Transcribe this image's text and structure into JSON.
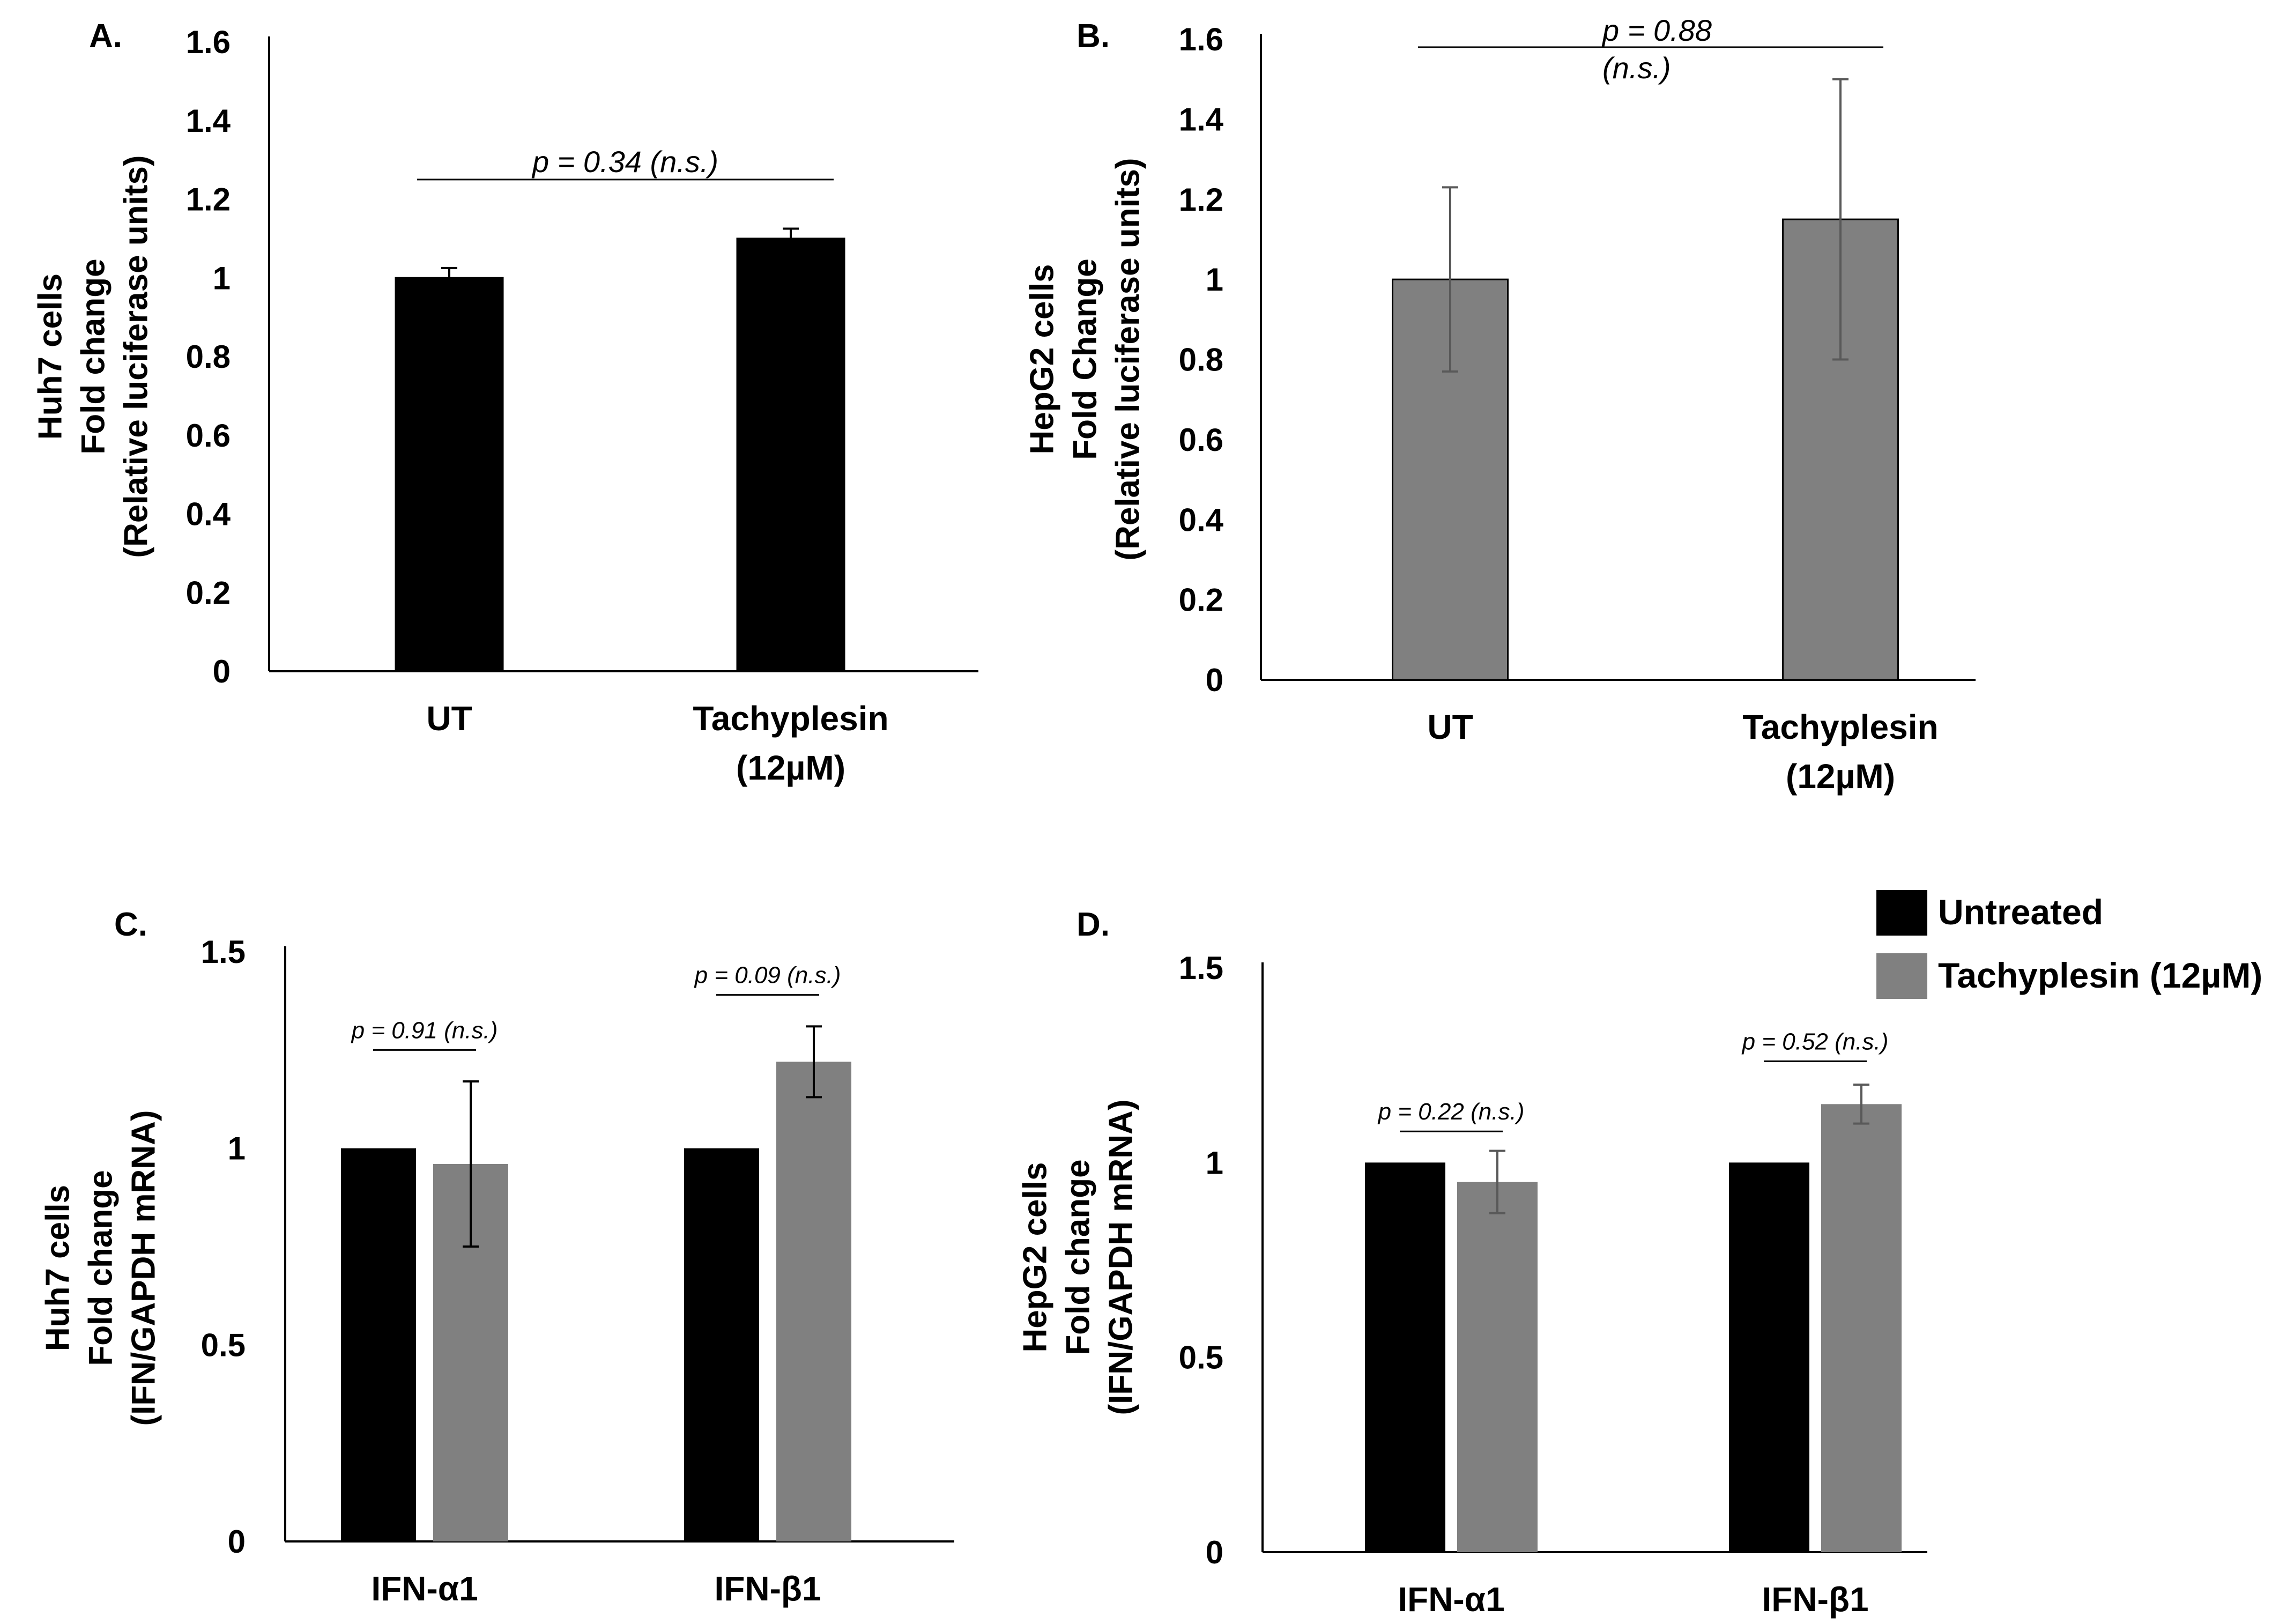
{
  "chart_data": [
    {
      "panel": "A.",
      "type": "bar",
      "categories": [
        "UT",
        "Tachyplesin\n(12µM)"
      ],
      "values": [
        1.0,
        1.1
      ],
      "errors": [
        0.025,
        0.025
      ],
      "colors": [
        "#000000",
        "#000000"
      ],
      "error_color": "#000000",
      "ylabel": [
        "Huh7 cells",
        "Fold change",
        "(Relative luciferase units)"
      ],
      "ylim": [
        0,
        1.6
      ],
      "yticks": [
        0,
        0.2,
        0.4,
        0.6,
        0.8,
        1,
        1.2,
        1.4,
        1.6
      ],
      "tick_labels": [
        "0",
        "0.2",
        "0.4",
        "0.6",
        "0.8",
        "1",
        "1.2",
        "1.4",
        "1.6"
      ],
      "annotations": [
        {
          "text": "p = 0.34 (n.s.)",
          "between": [
            0,
            1
          ],
          "level": 1.25
        }
      ]
    },
    {
      "panel": "B.",
      "type": "bar",
      "categories": [
        "UT",
        "Tachyplesin\n(12µM)"
      ],
      "values": [
        1.0,
        1.15
      ],
      "errors": [
        0.23,
        0.35
      ],
      "colors": [
        "#808080",
        "#808080"
      ],
      "error_color": "#595959",
      "ylabel": [
        "HepG2 cells",
        "Fold Change",
        "(Relative luciferase units)"
      ],
      "ylim": [
        0,
        1.6
      ],
      "yticks": [
        0,
        0.2,
        0.4,
        0.6,
        0.8,
        1,
        1.2,
        1.4,
        1.6
      ],
      "tick_labels": [
        "0",
        "0.2",
        "0.4",
        "0.6",
        "0.8",
        "1",
        "1.2",
        "1.4",
        "1.6"
      ],
      "annotations": [
        {
          "text": "p = 0.88",
          "text2": "(n.s.)",
          "between": [
            0,
            1
          ],
          "level": 1.58
        }
      ]
    },
    {
      "panel": "C.",
      "type": "grouped-bar",
      "categories": [
        "IFN-α1",
        "IFN-β1"
      ],
      "series": [
        {
          "name": "Untreated",
          "values": [
            1.0,
            1.0
          ],
          "errors": [
            0,
            0
          ],
          "color": "#000000"
        },
        {
          "name": "Tachyplesin (12µM)",
          "values": [
            0.96,
            1.22
          ],
          "errors": [
            0.21,
            0.09
          ],
          "color": "#808080"
        }
      ],
      "error_color": "#000000",
      "ylabel": [
        "Huh7 cells",
        "Fold change",
        "(IFN/GAPDH mRNA)"
      ],
      "ylim": [
        0,
        1.5
      ],
      "yticks": [
        0,
        0.5,
        1,
        1.5
      ],
      "tick_labels": [
        "0",
        "0.5",
        "1",
        "1.5"
      ],
      "annotations": [
        {
          "text": "p = 0.91 (n.s.)",
          "group": 0,
          "level": 1.25
        },
        {
          "text": "p = 0.09 (n.s.)",
          "group": 1,
          "level": 1.39
        }
      ]
    },
    {
      "panel": "D.",
      "type": "grouped-bar",
      "categories": [
        "IFN-α1",
        "IFN-β1"
      ],
      "series": [
        {
          "name": "Untreated",
          "values": [
            1.0,
            1.0
          ],
          "errors": [
            0,
            0
          ],
          "color": "#000000"
        },
        {
          "name": "Tachyplesin (12µM)",
          "values": [
            0.95,
            1.15
          ],
          "errors": [
            0.08,
            0.05
          ],
          "color": "#808080"
        }
      ],
      "error_color": "#595959",
      "ylabel": [
        "HepG2 cells",
        "Fold change",
        "(IFN/GAPDH mRNA)"
      ],
      "ylim": [
        0,
        1.5
      ],
      "yticks": [
        0,
        0.5,
        1,
        1.5
      ],
      "tick_labels": [
        "0",
        "0.5",
        "1",
        "1.5"
      ],
      "annotations": [
        {
          "text": "p = 0.22 (n.s.)",
          "group": 0,
          "level": 1.08
        },
        {
          "text": "p = 0.52 (n.s.)",
          "group": 1,
          "level": 1.26
        }
      ]
    }
  ],
  "legend": {
    "placement": "top-right",
    "items": [
      {
        "label": "Untreated",
        "color": "#000000"
      },
      {
        "label": "Tachyplesin (12µM)",
        "color": "#808080"
      }
    ]
  }
}
